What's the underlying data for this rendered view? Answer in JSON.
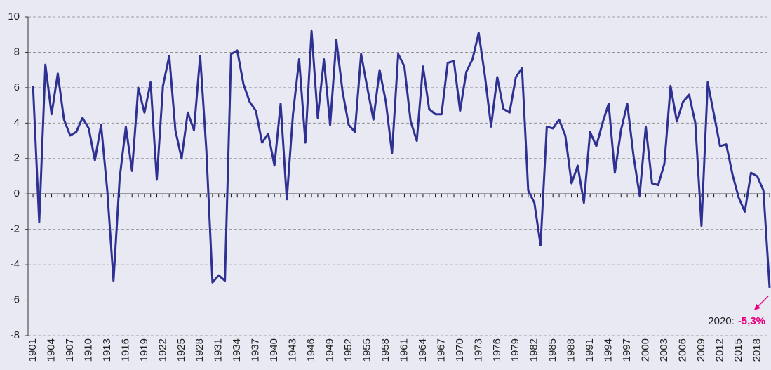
{
  "chart_data": {
    "type": "line",
    "x": [
      1901,
      1902,
      1903,
      1904,
      1905,
      1906,
      1907,
      1908,
      1909,
      1910,
      1911,
      1912,
      1913,
      1914,
      1915,
      1916,
      1917,
      1918,
      1919,
      1920,
      1921,
      1922,
      1923,
      1924,
      1925,
      1926,
      1927,
      1928,
      1929,
      1930,
      1931,
      1932,
      1933,
      1934,
      1935,
      1936,
      1937,
      1938,
      1939,
      1940,
      1941,
      1942,
      1943,
      1944,
      1945,
      1946,
      1947,
      1948,
      1949,
      1950,
      1951,
      1952,
      1953,
      1954,
      1955,
      1956,
      1957,
      1958,
      1959,
      1960,
      1961,
      1962,
      1963,
      1964,
      1965,
      1966,
      1967,
      1968,
      1969,
      1970,
      1971,
      1972,
      1973,
      1974,
      1975,
      1976,
      1977,
      1978,
      1979,
      1980,
      1981,
      1982,
      1983,
      1984,
      1985,
      1986,
      1987,
      1988,
      1989,
      1990,
      1991,
      1992,
      1993,
      1994,
      1995,
      1996,
      1997,
      1998,
      1999,
      2000,
      2001,
      2002,
      2003,
      2004,
      2005,
      2006,
      2007,
      2008,
      2009,
      2010,
      2011,
      2012,
      2013,
      2014,
      2015,
      2016,
      2017,
      2018,
      2019,
      2020
    ],
    "values": [
      6.1,
      -1.6,
      7.3,
      4.5,
      6.8,
      4.2,
      3.3,
      3.5,
      4.3,
      3.7,
      1.9,
      3.9,
      0.2,
      -4.9,
      0.9,
      3.8,
      1.3,
      6.0,
      4.6,
      6.3,
      0.8,
      6.1,
      7.8,
      3.6,
      2.0,
      4.6,
      3.6,
      7.8,
      2.5,
      -5.0,
      -4.6,
      -4.9,
      7.9,
      8.1,
      6.2,
      5.2,
      4.7,
      2.9,
      3.4,
      1.6,
      5.1,
      -0.3,
      4.5,
      7.6,
      2.9,
      9.2,
      4.3,
      7.6,
      3.9,
      8.7,
      5.8,
      3.9,
      3.5,
      7.9,
      6.0,
      4.2,
      7.0,
      5.2,
      2.3,
      7.9,
      7.2,
      4.1,
      3.0,
      7.2,
      4.8,
      4.5,
      4.5,
      7.4,
      7.5,
      4.7,
      6.9,
      7.6,
      9.1,
      6.7,
      3.8,
      6.6,
      4.8,
      4.6,
      6.6,
      7.1,
      0.2,
      -0.5,
      -2.9,
      3.8,
      3.7,
      4.2,
      3.3,
      0.6,
      1.6,
      -0.5,
      3.5,
      2.7,
      4.0,
      5.1,
      1.2,
      3.6,
      5.1,
      2.2,
      -0.1,
      3.8,
      0.6,
      0.5,
      1.7,
      6.1,
      4.1,
      5.2,
      5.6,
      4.0,
      -1.8,
      6.3,
      4.5,
      2.7,
      2.8,
      1.1,
      -0.2,
      -1.0,
      1.2,
      1.0,
      0.2,
      -5.3
    ],
    "color": "#2e3192",
    "xlim": [
      1900.2,
      2020
    ],
    "xticks": [
      1901,
      1904,
      1907,
      1910,
      1913,
      1916,
      1919,
      1922,
      1925,
      1928,
      1931,
      1934,
      1937,
      1940,
      1943,
      1946,
      1949,
      1952,
      1955,
      1958,
      1961,
      1964,
      1967,
      1970,
      1973,
      1976,
      1979,
      1982,
      1985,
      1988,
      1991,
      1994,
      1997,
      2000,
      2003,
      2006,
      2009,
      2012,
      2015,
      2018
    ],
    "ylim": [
      -8,
      10
    ],
    "yticks": [
      -8,
      -6,
      -4,
      -2,
      0,
      2,
      4,
      6,
      8,
      10
    ],
    "grid": true,
    "annotation": {
      "label": "2020:",
      "value_label": "-5,3%",
      "color": "#e6007e"
    }
  }
}
